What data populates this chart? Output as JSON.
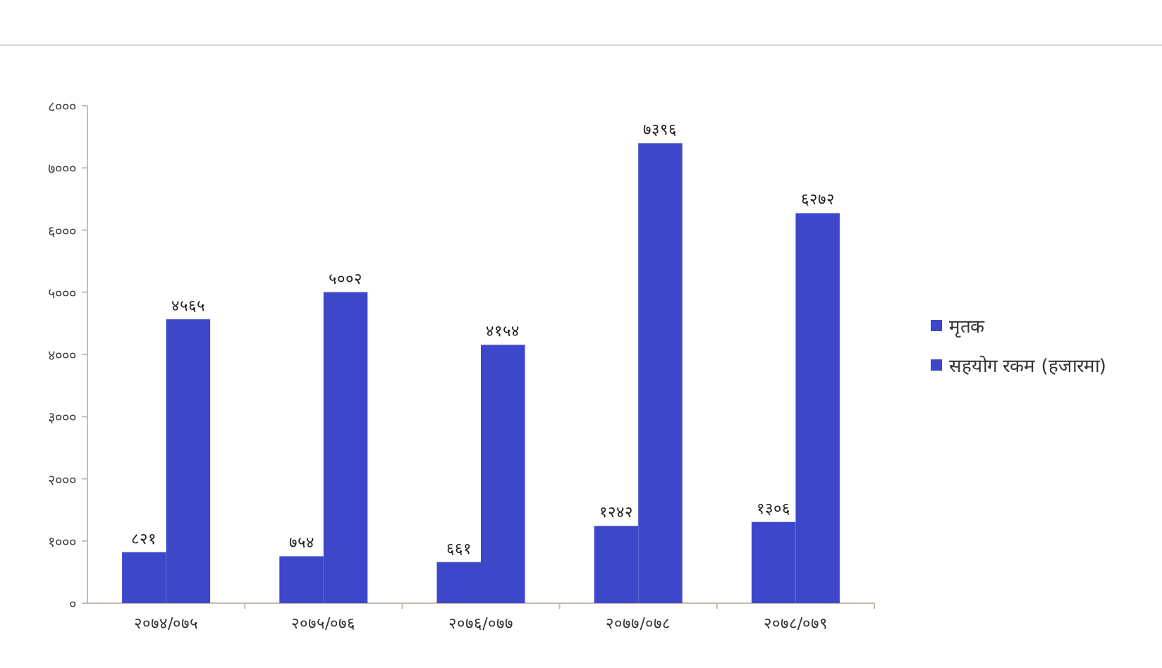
{
  "chart_data": {
    "type": "bar",
    "categories": [
      "२०७४/०७५",
      "२०७५/०७६",
      "२०७६/०७७",
      "२०७७/०७८",
      "२०७८/०७९"
    ],
    "series": [
      {
        "name": "मृतक",
        "color": "#3d47c9",
        "values": [
          821,
          754,
          661,
          1242,
          1306
        ],
        "value_labels": [
          "८२१",
          "७५४",
          "६६१",
          "१२४२",
          "१३०६"
        ]
      },
      {
        "name": "सहयोग रकम (हजारमा)",
        "color": "#3d47c9",
        "values": [
          4565,
          5002,
          4154,
          7396,
          6272
        ],
        "value_labels": [
          "४५६५",
          "५००२",
          "४१५४",
          "७३९६",
          "६२७२"
        ]
      }
    ],
    "ylim": [
      0,
      8000
    ],
    "yticks": [
      {
        "value": 0,
        "label": "०"
      },
      {
        "value": 1000,
        "label": "१०००"
      },
      {
        "value": 2000,
        "label": "२०००"
      },
      {
        "value": 3000,
        "label": "३०००"
      },
      {
        "value": 4000,
        "label": "४०००"
      },
      {
        "value": 5000,
        "label": "५०००"
      },
      {
        "value": 6000,
        "label": "६०००"
      },
      {
        "value": 7000,
        "label": "७०००"
      },
      {
        "value": 8000,
        "label": "८०००"
      }
    ],
    "grid": false,
    "legend": "right"
  }
}
